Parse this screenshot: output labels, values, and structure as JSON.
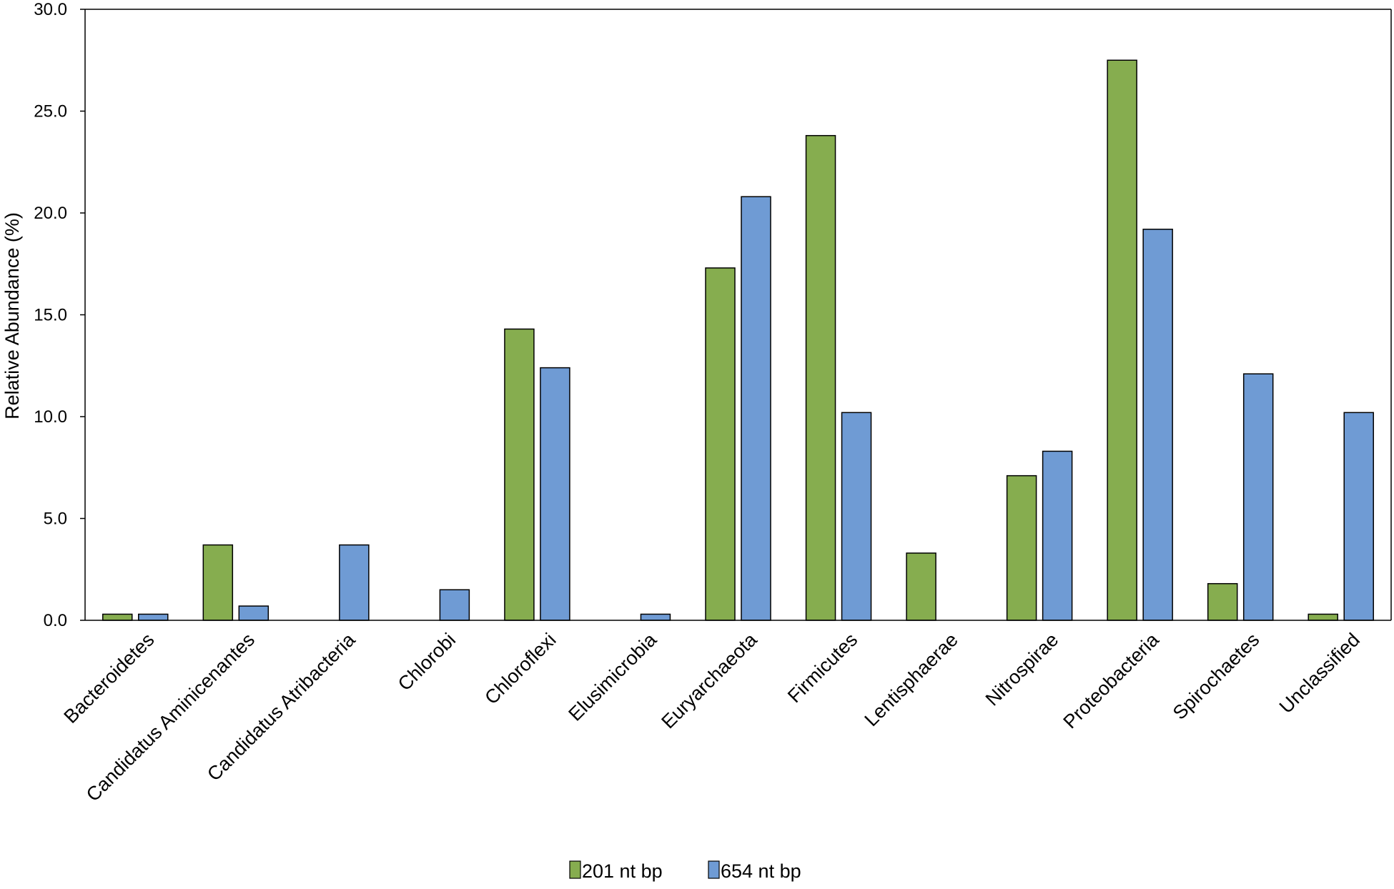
{
  "chart_data": {
    "type": "bar",
    "title": "",
    "xlabel": "",
    "ylabel": "Relative Abundance (%)",
    "ylim": [
      0,
      30
    ],
    "y_ticks": [
      "0.0",
      "5.0",
      "10.0",
      "15.0",
      "20.0",
      "25.0",
      "30.0"
    ],
    "grid": false,
    "legend_position": "bottom",
    "categories": [
      "Bacteroidetes",
      "Candidatus Aminicenantes",
      "Candidatus Atribacteria",
      "Chlorobi",
      "Chloroflexi",
      "Elusimicrobia",
      "Euryarchaeota",
      "Firmicutes",
      "Lentisphaerae",
      "Nitrospirae",
      "Proteobacteria",
      "Spirochaetes",
      "Unclassified"
    ],
    "series": [
      {
        "name": "201 nt bp",
        "color": "#86ad4f",
        "values": [
          0.3,
          3.7,
          0,
          0,
          14.3,
          0,
          17.3,
          23.8,
          3.3,
          7.1,
          27.5,
          1.8,
          0.3
        ]
      },
      {
        "name": "654 nt bp",
        "color": "#6f9bd4",
        "values": [
          0.3,
          0.7,
          3.7,
          1.5,
          12.4,
          0.3,
          20.8,
          10.2,
          0,
          8.3,
          19.2,
          12.1,
          10.2
        ]
      }
    ]
  }
}
